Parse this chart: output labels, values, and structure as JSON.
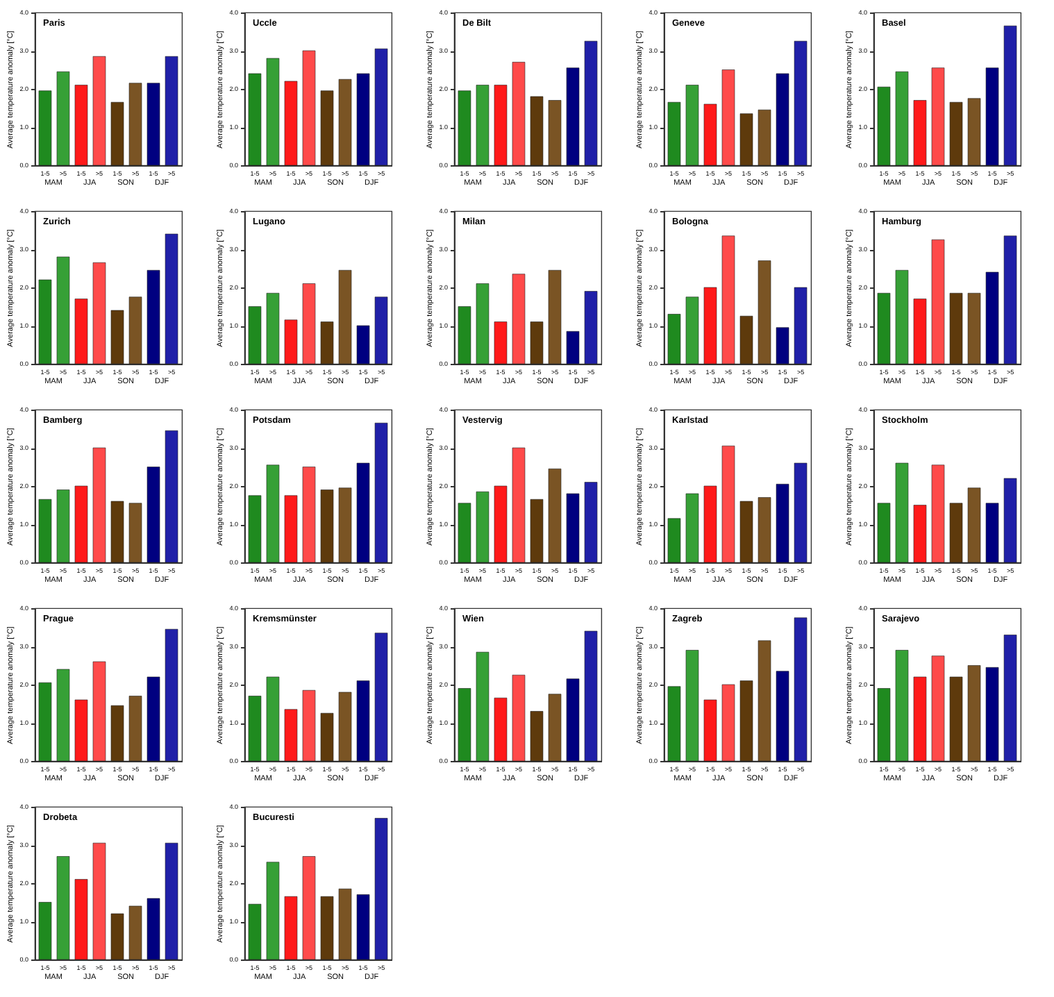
{
  "chart_data": [
    {
      "type": "bar",
      "title": "Paris",
      "ylabel": "Average temperature anomaly [°C]",
      "categories": [
        "1-5",
        ">5",
        "1-5",
        ">5",
        "1-5",
        ">5",
        "1-5",
        ">5"
      ],
      "values": [
        1.95,
        2.45,
        2.1,
        2.85,
        1.65,
        2.15,
        2.15,
        2.85
      ],
      "colors": [
        "#1f8a1f",
        "#36a036",
        "#ff1a1a",
        "#ff4a4a",
        "#5e3a0c",
        "#7a5424",
        "#000080",
        "#2020a8"
      ],
      "ylim": [
        0,
        4
      ],
      "yticks": [
        {
          "value": 0,
          "label": "0.0"
        },
        {
          "value": 1,
          "label": "1.0"
        },
        {
          "value": 2,
          "label": "2.0"
        },
        {
          "value": 3,
          "label": "3.0"
        },
        {
          "value": 4,
          "label": "4.0"
        }
      ],
      "annotations": [
        "MAM",
        "JJA",
        "SON",
        "DJF"
      ]
    },
    {
      "type": "bar",
      "title": "Uccle",
      "ylabel": "Average temperature anomaly [°C]",
      "categories": [
        "1-5",
        ">5",
        "1-5",
        ">5",
        "1-5",
        ">5",
        "1-5",
        ">5"
      ],
      "values": [
        2.4,
        2.8,
        2.2,
        3.0,
        1.95,
        2.25,
        2.4,
        3.05
      ],
      "colors": [
        "#1f8a1f",
        "#36a036",
        "#ff1a1a",
        "#ff4a4a",
        "#5e3a0c",
        "#7a5424",
        "#000080",
        "#2020a8"
      ],
      "ylim": [
        0,
        4
      ],
      "yticks": [
        {
          "value": 0,
          "label": "0.0"
        },
        {
          "value": 1,
          "label": "1.0"
        },
        {
          "value": 2,
          "label": "2.0"
        },
        {
          "value": 3,
          "label": "3.0"
        },
        {
          "value": 4,
          "label": "4.0"
        }
      ],
      "annotations": [
        "MAM",
        "JJA",
        "SON",
        "DJF"
      ]
    },
    {
      "type": "bar",
      "title": "De Bilt",
      "ylabel": "Average temperature anomaly [°C]",
      "categories": [
        "1-5",
        ">5",
        "1-5",
        ">5",
        "1-5",
        ">5",
        "1-5",
        ">5"
      ],
      "values": [
        1.95,
        2.1,
        2.1,
        2.7,
        1.8,
        1.7,
        2.55,
        3.25
      ],
      "colors": [
        "#1f8a1f",
        "#36a036",
        "#ff1a1a",
        "#ff4a4a",
        "#5e3a0c",
        "#7a5424",
        "#000080",
        "#2020a8"
      ],
      "ylim": [
        0,
        4
      ],
      "yticks": [
        {
          "value": 0,
          "label": "0.0"
        },
        {
          "value": 1,
          "label": "1.0"
        },
        {
          "value": 2,
          "label": "2.0"
        },
        {
          "value": 3,
          "label": "3.0"
        },
        {
          "value": 4,
          "label": "4.0"
        }
      ],
      "annotations": [
        "MAM",
        "JJA",
        "SON",
        "DJF"
      ]
    },
    {
      "type": "bar",
      "title": "Geneve",
      "ylabel": "Average temperature anomaly [°C]",
      "categories": [
        "1-5",
        ">5",
        "1-5",
        ">5",
        "1-5",
        ">5",
        "1-5",
        ">5"
      ],
      "values": [
        1.65,
        2.1,
        1.6,
        2.5,
        1.35,
        1.45,
        2.4,
        3.25
      ],
      "colors": [
        "#1f8a1f",
        "#36a036",
        "#ff1a1a",
        "#ff4a4a",
        "#5e3a0c",
        "#7a5424",
        "#000080",
        "#2020a8"
      ],
      "ylim": [
        0,
        4
      ],
      "yticks": [
        {
          "value": 0,
          "label": "0.0"
        },
        {
          "value": 1,
          "label": "1.0"
        },
        {
          "value": 2,
          "label": "2.0"
        },
        {
          "value": 3,
          "label": "3.0"
        },
        {
          "value": 4,
          "label": "4.0"
        }
      ],
      "annotations": [
        "MAM",
        "JJA",
        "SON",
        "DJF"
      ]
    },
    {
      "type": "bar",
      "title": "Basel",
      "ylabel": "Average temperature anomaly [°C]",
      "categories": [
        "1-5",
        ">5",
        "1-5",
        ">5",
        "1-5",
        ">5",
        "1-5",
        ">5"
      ],
      "values": [
        2.05,
        2.45,
        1.7,
        2.55,
        1.65,
        1.75,
        2.55,
        3.65
      ],
      "colors": [
        "#1f8a1f",
        "#36a036",
        "#ff1a1a",
        "#ff4a4a",
        "#5e3a0c",
        "#7a5424",
        "#000080",
        "#2020a8"
      ],
      "ylim": [
        0,
        4
      ],
      "yticks": [
        {
          "value": 0,
          "label": "0.0"
        },
        {
          "value": 1,
          "label": "1.0"
        },
        {
          "value": 2,
          "label": "2.0"
        },
        {
          "value": 3,
          "label": "3.0"
        },
        {
          "value": 4,
          "label": "4.0"
        }
      ],
      "annotations": [
        "MAM",
        "JJA",
        "SON",
        "DJF"
      ]
    },
    {
      "type": "bar",
      "title": "Zurich",
      "ylabel": "Average temperature anomaly [°C]",
      "categories": [
        "1-5",
        ">5",
        "1-5",
        ">5",
        "1-5",
        ">5",
        "1-5",
        ">5"
      ],
      "values": [
        2.2,
        2.8,
        1.7,
        2.65,
        1.4,
        1.75,
        2.45,
        3.4
      ],
      "colors": [
        "#1f8a1f",
        "#36a036",
        "#ff1a1a",
        "#ff4a4a",
        "#5e3a0c",
        "#7a5424",
        "#000080",
        "#2020a8"
      ],
      "ylim": [
        0,
        4
      ],
      "yticks": [
        {
          "value": 0,
          "label": "0.0"
        },
        {
          "value": 1,
          "label": "1.0"
        },
        {
          "value": 2,
          "label": "2.0"
        },
        {
          "value": 3,
          "label": "3.0"
        },
        {
          "value": 4,
          "label": "4.0"
        }
      ],
      "annotations": [
        "MAM",
        "JJA",
        "SON",
        "DJF"
      ]
    },
    {
      "type": "bar",
      "title": "Lugano",
      "ylabel": "Average temperature anomaly [°C]",
      "categories": [
        "1-5",
        ">5",
        "1-5",
        ">5",
        "1-5",
        ">5",
        "1-5",
        ">5"
      ],
      "values": [
        1.5,
        1.85,
        1.15,
        2.1,
        1.1,
        2.45,
        1.0,
        1.75
      ],
      "colors": [
        "#1f8a1f",
        "#36a036",
        "#ff1a1a",
        "#ff4a4a",
        "#5e3a0c",
        "#7a5424",
        "#000080",
        "#2020a8"
      ],
      "ylim": [
        0,
        4
      ],
      "yticks": [
        {
          "value": 0,
          "label": "0.0"
        },
        {
          "value": 1,
          "label": "1.0"
        },
        {
          "value": 2,
          "label": "2.0"
        },
        {
          "value": 3,
          "label": "3.0"
        },
        {
          "value": 4,
          "label": "4.0"
        }
      ],
      "annotations": [
        "MAM",
        "JJA",
        "SON",
        "DJF"
      ]
    },
    {
      "type": "bar",
      "title": "Milan",
      "ylabel": "Average temperature anomaly [°C]",
      "categories": [
        "1-5",
        ">5",
        "1-5",
        ">5",
        "1-5",
        ">5",
        "1-5",
        ">5"
      ],
      "values": [
        1.5,
        2.1,
        1.1,
        2.35,
        1.1,
        2.45,
        0.85,
        1.9
      ],
      "colors": [
        "#1f8a1f",
        "#36a036",
        "#ff1a1a",
        "#ff4a4a",
        "#5e3a0c",
        "#7a5424",
        "#000080",
        "#2020a8"
      ],
      "ylim": [
        0,
        4
      ],
      "yticks": [
        {
          "value": 0,
          "label": "0.0"
        },
        {
          "value": 1,
          "label": "1.0"
        },
        {
          "value": 2,
          "label": "2.0"
        },
        {
          "value": 3,
          "label": "3.0"
        },
        {
          "value": 4,
          "label": "4.0"
        }
      ],
      "annotations": [
        "MAM",
        "JJA",
        "SON",
        "DJF"
      ]
    },
    {
      "type": "bar",
      "title": "Bologna",
      "ylabel": "Average temperature anomaly [°C]",
      "categories": [
        "1-5",
        ">5",
        "1-5",
        ">5",
        "1-5",
        ">5",
        "1-5",
        ">5"
      ],
      "values": [
        1.3,
        1.75,
        2.0,
        3.35,
        1.25,
        2.7,
        0.95,
        2.0
      ],
      "colors": [
        "#1f8a1f",
        "#36a036",
        "#ff1a1a",
        "#ff4a4a",
        "#5e3a0c",
        "#7a5424",
        "#000080",
        "#2020a8"
      ],
      "ylim": [
        0,
        4
      ],
      "yticks": [
        {
          "value": 0,
          "label": "0.0"
        },
        {
          "value": 1,
          "label": "1.0"
        },
        {
          "value": 2,
          "label": "2.0"
        },
        {
          "value": 3,
          "label": "3.0"
        },
        {
          "value": 4,
          "label": "4.0"
        }
      ],
      "annotations": [
        "MAM",
        "JJA",
        "SON",
        "DJF"
      ]
    },
    {
      "type": "bar",
      "title": "Hamburg",
      "ylabel": "Average temperature anomaly [°C]",
      "categories": [
        "1-5",
        ">5",
        "1-5",
        ">5",
        "1-5",
        ">5",
        "1-5",
        ">5"
      ],
      "values": [
        1.85,
        2.45,
        1.7,
        3.25,
        1.85,
        1.85,
        2.4,
        3.35
      ],
      "colors": [
        "#1f8a1f",
        "#36a036",
        "#ff1a1a",
        "#ff4a4a",
        "#5e3a0c",
        "#7a5424",
        "#000080",
        "#2020a8"
      ],
      "ylim": [
        0,
        4
      ],
      "yticks": [
        {
          "value": 0,
          "label": "0.0"
        },
        {
          "value": 1,
          "label": "1.0"
        },
        {
          "value": 2,
          "label": "2.0"
        },
        {
          "value": 3,
          "label": "3.0"
        },
        {
          "value": 4,
          "label": "4.0"
        }
      ],
      "annotations": [
        "MAM",
        "JJA",
        "SON",
        "DJF"
      ]
    },
    {
      "type": "bar",
      "title": "Bamberg",
      "ylabel": "Average temperature anomaly [°C]",
      "categories": [
        "1-5",
        ">5",
        "1-5",
        ">5",
        "1-5",
        ">5",
        "1-5",
        ">5"
      ],
      "values": [
        1.65,
        1.9,
        2.0,
        3.0,
        1.6,
        1.55,
        2.5,
        3.45
      ],
      "colors": [
        "#1f8a1f",
        "#36a036",
        "#ff1a1a",
        "#ff4a4a",
        "#5e3a0c",
        "#7a5424",
        "#000080",
        "#2020a8"
      ],
      "ylim": [
        0,
        4
      ],
      "yticks": [
        {
          "value": 0,
          "label": "0.0"
        },
        {
          "value": 1,
          "label": "1.0"
        },
        {
          "value": 2,
          "label": "2.0"
        },
        {
          "value": 3,
          "label": "3.0"
        },
        {
          "value": 4,
          "label": "4.0"
        }
      ],
      "annotations": [
        "MAM",
        "JJA",
        "SON",
        "DJF"
      ]
    },
    {
      "type": "bar",
      "title": "Potsdam",
      "ylabel": "Average temperature anomaly [°C]",
      "categories": [
        "1-5",
        ">5",
        "1-5",
        ">5",
        "1-5",
        ">5",
        "1-5",
        ">5"
      ],
      "values": [
        1.75,
        2.55,
        1.75,
        2.5,
        1.9,
        1.95,
        2.6,
        3.65
      ],
      "colors": [
        "#1f8a1f",
        "#36a036",
        "#ff1a1a",
        "#ff4a4a",
        "#5e3a0c",
        "#7a5424",
        "#000080",
        "#2020a8"
      ],
      "ylim": [
        0,
        4
      ],
      "yticks": [
        {
          "value": 0,
          "label": "0.0"
        },
        {
          "value": 1,
          "label": "1.0"
        },
        {
          "value": 2,
          "label": "2.0"
        },
        {
          "value": 3,
          "label": "3.0"
        },
        {
          "value": 4,
          "label": "4.0"
        }
      ],
      "annotations": [
        "MAM",
        "JJA",
        "SON",
        "DJF"
      ]
    },
    {
      "type": "bar",
      "title": "Vestervig",
      "ylabel": "Average temperature anomaly [°C]",
      "categories": [
        "1-5",
        ">5",
        "1-5",
        ">5",
        "1-5",
        ">5",
        "1-5",
        ">5"
      ],
      "values": [
        1.55,
        1.85,
        2.0,
        3.0,
        1.65,
        2.45,
        1.8,
        2.1
      ],
      "colors": [
        "#1f8a1f",
        "#36a036",
        "#ff1a1a",
        "#ff4a4a",
        "#5e3a0c",
        "#7a5424",
        "#000080",
        "#2020a8"
      ],
      "ylim": [
        0,
        4
      ],
      "yticks": [
        {
          "value": 0,
          "label": "0.0"
        },
        {
          "value": 1,
          "label": "1.0"
        },
        {
          "value": 2,
          "label": "2.0"
        },
        {
          "value": 3,
          "label": "3.0"
        },
        {
          "value": 4,
          "label": "4.0"
        }
      ],
      "annotations": [
        "MAM",
        "JJA",
        "SON",
        "DJF"
      ]
    },
    {
      "type": "bar",
      "title": "Karlstad",
      "ylabel": "Average temperature anomaly [°C]",
      "categories": [
        "1-5",
        ">5",
        "1-5",
        ">5",
        "1-5",
        ">5",
        "1-5",
        ">5"
      ],
      "values": [
        1.15,
        1.8,
        2.0,
        3.05,
        1.6,
        1.7,
        2.05,
        2.6
      ],
      "colors": [
        "#1f8a1f",
        "#36a036",
        "#ff1a1a",
        "#ff4a4a",
        "#5e3a0c",
        "#7a5424",
        "#000080",
        "#2020a8"
      ],
      "ylim": [
        0,
        4
      ],
      "yticks": [
        {
          "value": 0,
          "label": "0.0"
        },
        {
          "value": 1,
          "label": "1.0"
        },
        {
          "value": 2,
          "label": "2.0"
        },
        {
          "value": 3,
          "label": "3.0"
        },
        {
          "value": 4,
          "label": "4.0"
        }
      ],
      "annotations": [
        "MAM",
        "JJA",
        "SON",
        "DJF"
      ]
    },
    {
      "type": "bar",
      "title": "Stockholm",
      "ylabel": "Average temperature anomaly [°C]",
      "categories": [
        "1-5",
        ">5",
        "1-5",
        ">5",
        "1-5",
        ">5",
        "1-5",
        ">5"
      ],
      "values": [
        1.55,
        2.6,
        1.5,
        2.55,
        1.55,
        1.95,
        1.55,
        2.2
      ],
      "colors": [
        "#1f8a1f",
        "#36a036",
        "#ff1a1a",
        "#ff4a4a",
        "#5e3a0c",
        "#7a5424",
        "#000080",
        "#2020a8"
      ],
      "ylim": [
        0,
        4
      ],
      "yticks": [
        {
          "value": 0,
          "label": "0.0"
        },
        {
          "value": 1,
          "label": "1.0"
        },
        {
          "value": 2,
          "label": "2.0"
        },
        {
          "value": 3,
          "label": "3.0"
        },
        {
          "value": 4,
          "label": "4.0"
        }
      ],
      "annotations": [
        "MAM",
        "JJA",
        "SON",
        "DJF"
      ]
    },
    {
      "type": "bar",
      "title": "Prague",
      "ylabel": "Average temperature anomaly [°C]",
      "categories": [
        "1-5",
        ">5",
        "1-5",
        ">5",
        "1-5",
        ">5",
        "1-5",
        ">5"
      ],
      "values": [
        2.05,
        2.4,
        1.6,
        2.6,
        1.45,
        1.7,
        2.2,
        3.45
      ],
      "colors": [
        "#1f8a1f",
        "#36a036",
        "#ff1a1a",
        "#ff4a4a",
        "#5e3a0c",
        "#7a5424",
        "#000080",
        "#2020a8"
      ],
      "ylim": [
        0,
        4
      ],
      "yticks": [
        {
          "value": 0,
          "label": "0.0"
        },
        {
          "value": 1,
          "label": "1.0"
        },
        {
          "value": 2,
          "label": "2.0"
        },
        {
          "value": 3,
          "label": "3.0"
        },
        {
          "value": 4,
          "label": "4.0"
        }
      ],
      "annotations": [
        "MAM",
        "JJA",
        "SON",
        "DJF"
      ]
    },
    {
      "type": "bar",
      "title": "Kremsmünster",
      "ylabel": "Average temperature anomaly [°C]",
      "categories": [
        "1-5",
        ">5",
        "1-5",
        ">5",
        "1-5",
        ">5",
        "1-5",
        ">5"
      ],
      "values": [
        1.7,
        2.2,
        1.35,
        1.85,
        1.25,
        1.8,
        2.1,
        3.35
      ],
      "colors": [
        "#1f8a1f",
        "#36a036",
        "#ff1a1a",
        "#ff4a4a",
        "#5e3a0c",
        "#7a5424",
        "#000080",
        "#2020a8"
      ],
      "ylim": [
        0,
        4
      ],
      "yticks": [
        {
          "value": 0,
          "label": "0.0"
        },
        {
          "value": 1,
          "label": "1.0"
        },
        {
          "value": 2,
          "label": "2.0"
        },
        {
          "value": 3,
          "label": "3.0"
        },
        {
          "value": 4,
          "label": "4.0"
        }
      ],
      "annotations": [
        "MAM",
        "JJA",
        "SON",
        "DJF"
      ]
    },
    {
      "type": "bar",
      "title": "Wien",
      "ylabel": "Average temperature anomaly [°C]",
      "categories": [
        "1-5",
        ">5",
        "1-5",
        ">5",
        "1-5",
        ">5",
        "1-5",
        ">5"
      ],
      "values": [
        1.9,
        2.85,
        1.65,
        2.25,
        1.3,
        1.75,
        2.15,
        3.4
      ],
      "colors": [
        "#1f8a1f",
        "#36a036",
        "#ff1a1a",
        "#ff4a4a",
        "#5e3a0c",
        "#7a5424",
        "#000080",
        "#2020a8"
      ],
      "ylim": [
        0,
        4
      ],
      "yticks": [
        {
          "value": 0,
          "label": "0.0"
        },
        {
          "value": 1,
          "label": "1.0"
        },
        {
          "value": 2,
          "label": "2.0"
        },
        {
          "value": 3,
          "label": "3.0"
        },
        {
          "value": 4,
          "label": "4.0"
        }
      ],
      "annotations": [
        "MAM",
        "JJA",
        "SON",
        "DJF"
      ]
    },
    {
      "type": "bar",
      "title": "Zagreb",
      "ylabel": "Average temperature anomaly [°C]",
      "categories": [
        "1-5",
        ">5",
        "1-5",
        ">5",
        "1-5",
        ">5",
        "1-5",
        ">5"
      ],
      "values": [
        1.95,
        2.9,
        1.6,
        2.0,
        2.1,
        3.15,
        2.35,
        3.75
      ],
      "colors": [
        "#1f8a1f",
        "#36a036",
        "#ff1a1a",
        "#ff4a4a",
        "#5e3a0c",
        "#7a5424",
        "#000080",
        "#2020a8"
      ],
      "ylim": [
        0,
        4
      ],
      "yticks": [
        {
          "value": 0,
          "label": "0.0"
        },
        {
          "value": 1,
          "label": "1.0"
        },
        {
          "value": 2,
          "label": "2.0"
        },
        {
          "value": 3,
          "label": "3.0"
        },
        {
          "value": 4,
          "label": "4.0"
        }
      ],
      "annotations": [
        "MAM",
        "JJA",
        "SON",
        "DJF"
      ]
    },
    {
      "type": "bar",
      "title": "Sarajevo",
      "ylabel": "Average temperature anomaly [°C]",
      "categories": [
        "1-5",
        ">5",
        "1-5",
        ">5",
        "1-5",
        ">5",
        "1-5",
        ">5"
      ],
      "values": [
        1.9,
        2.9,
        2.2,
        2.75,
        2.2,
        2.5,
        2.45,
        3.3
      ],
      "colors": [
        "#1f8a1f",
        "#36a036",
        "#ff1a1a",
        "#ff4a4a",
        "#5e3a0c",
        "#7a5424",
        "#000080",
        "#2020a8"
      ],
      "ylim": [
        0,
        4
      ],
      "yticks": [
        {
          "value": 0,
          "label": "0.0"
        },
        {
          "value": 1,
          "label": "1.0"
        },
        {
          "value": 2,
          "label": "2.0"
        },
        {
          "value": 3,
          "label": "3.0"
        },
        {
          "value": 4,
          "label": "4.0"
        }
      ],
      "annotations": [
        "MAM",
        "JJA",
        "SON",
        "DJF"
      ]
    },
    {
      "type": "bar",
      "title": "Drobeta",
      "ylabel": "Average temperature anomaly [°C]",
      "categories": [
        "1-5",
        ">5",
        "1-5",
        ">5",
        "1-5",
        ">5",
        "1-5",
        ">5"
      ],
      "values": [
        1.5,
        2.7,
        2.1,
        3.05,
        1.2,
        1.4,
        1.6,
        3.05
      ],
      "colors": [
        "#1f8a1f",
        "#36a036",
        "#ff1a1a",
        "#ff4a4a",
        "#5e3a0c",
        "#7a5424",
        "#000080",
        "#2020a8"
      ],
      "ylim": [
        0,
        4
      ],
      "yticks": [
        {
          "value": 0,
          "label": "0.0"
        },
        {
          "value": 1,
          "label": "1.0"
        },
        {
          "value": 2,
          "label": "2.0"
        },
        {
          "value": 3,
          "label": "3.0"
        },
        {
          "value": 4,
          "label": "4.0"
        }
      ],
      "annotations": [
        "MAM",
        "JJA",
        "SON",
        "DJF"
      ]
    },
    {
      "type": "bar",
      "title": "Bucuresti",
      "ylabel": "Average temperature anomaly [°C]",
      "categories": [
        "1-5",
        ">5",
        "1-5",
        ">5",
        "1-5",
        ">5",
        "1-5",
        ">5"
      ],
      "values": [
        1.45,
        2.55,
        1.65,
        2.7,
        1.65,
        1.85,
        1.7,
        3.7
      ],
      "colors": [
        "#1f8a1f",
        "#36a036",
        "#ff1a1a",
        "#ff4a4a",
        "#5e3a0c",
        "#7a5424",
        "#000080",
        "#2020a8"
      ],
      "ylim": [
        0,
        4
      ],
      "yticks": [
        {
          "value": 0,
          "label": "0.0"
        },
        {
          "value": 1,
          "label": "1.0"
        },
        {
          "value": 2,
          "label": "2.0"
        },
        {
          "value": 3,
          "label": "3.0"
        },
        {
          "value": 4,
          "label": "4.0"
        }
      ],
      "annotations": [
        "MAM",
        "JJA",
        "SON",
        "DJF"
      ]
    }
  ]
}
